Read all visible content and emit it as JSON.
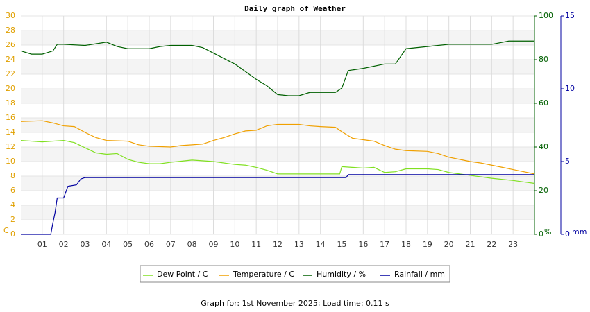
{
  "chart_data": {
    "type": "line",
    "title": "Daily graph of Weather",
    "footer": "Graph for: 1st November 2025; Load time: 0.11 s",
    "y_label": "C",
    "y2_label": "%",
    "y3_label": "mm",
    "xlim": [
      0,
      24
    ],
    "xticks": [
      {
        "value": 1,
        "label": "01"
      },
      {
        "value": 2,
        "label": "02"
      },
      {
        "value": 3,
        "label": "03"
      },
      {
        "value": 4,
        "label": "04"
      },
      {
        "value": 5,
        "label": "05"
      },
      {
        "value": 6,
        "label": "06"
      },
      {
        "value": 7,
        "label": "07"
      },
      {
        "value": 8,
        "label": "08"
      },
      {
        "value": 9,
        "label": "09"
      },
      10,
      11,
      12,
      13,
      14,
      15,
      16,
      17,
      18,
      19,
      20,
      21,
      22,
      23
    ],
    "ylim": [
      0,
      30
    ],
    "yticks": [
      0,
      2,
      4,
      6,
      8,
      10,
      12,
      14,
      16,
      18,
      20,
      22,
      24,
      26,
      28,
      30
    ],
    "y2lim": [
      0,
      100
    ],
    "y2ticks": [
      0,
      20,
      40,
      60,
      80,
      100
    ],
    "y3lim": [
      0,
      15
    ],
    "y3ticks": [
      0,
      5,
      10,
      15
    ],
    "grid": true,
    "series": [
      {
        "name": "Dew Point / C",
        "color": "#80e020",
        "x": [
          0,
          1,
          2,
          2.5,
          3,
          3.5,
          4,
          4.5,
          5,
          5.5,
          6,
          6.5,
          7,
          8,
          9,
          10,
          10.5,
          11,
          11.5,
          12,
          13,
          14,
          14.9,
          15,
          16,
          16.5,
          17,
          17.5,
          18,
          19,
          19.5,
          20,
          20.5,
          21,
          22,
          23,
          24
        ],
        "values": [
          12.9,
          12.7,
          12.9,
          12.6,
          11.9,
          11.2,
          11.0,
          11.1,
          10.3,
          9.9,
          9.7,
          9.7,
          9.9,
          10.2,
          10.0,
          9.6,
          9.5,
          9.2,
          8.8,
          8.3,
          8.3,
          8.3,
          8.3,
          9.3,
          9.1,
          9.2,
          8.5,
          8.6,
          9.0,
          9.0,
          8.9,
          8.5,
          8.3,
          8.1,
          7.7,
          7.4,
          7.0
        ]
      },
      {
        "name": "Temperature / C",
        "color": "#f0a000",
        "x": [
          0,
          1,
          1.5,
          2,
          2.5,
          3,
          3.5,
          4,
          5,
          5.5,
          6,
          7,
          7.5,
          8,
          8.5,
          9,
          9.5,
          10,
          10.5,
          11,
          11.5,
          12,
          13,
          13.5,
          14,
          14.7,
          15,
          15.5,
          16,
          16.5,
          17,
          17.5,
          18,
          19,
          19.5,
          20,
          20.5,
          21,
          21.5,
          22,
          22.5,
          23,
          23.5,
          24
        ],
        "values": [
          15.5,
          15.6,
          15.3,
          14.9,
          14.8,
          14.0,
          13.3,
          12.9,
          12.8,
          12.3,
          12.1,
          12.0,
          12.2,
          12.3,
          12.4,
          12.9,
          13.3,
          13.8,
          14.2,
          14.3,
          14.9,
          15.1,
          15.1,
          14.9,
          14.8,
          14.7,
          14.1,
          13.2,
          13.0,
          12.8,
          12.2,
          11.7,
          11.5,
          11.4,
          11.1,
          10.6,
          10.3,
          10.0,
          9.8,
          9.5,
          9.2,
          8.9,
          8.6,
          8.3
        ]
      },
      {
        "name": "Humidity / %",
        "color": "#006000",
        "axis": "y2",
        "x": [
          0,
          0.5,
          1,
          1.5,
          1.7,
          2,
          3,
          4,
          4.5,
          5,
          6,
          6.5,
          7,
          8,
          8.5,
          9,
          10,
          11,
          11.5,
          12,
          12.5,
          13,
          13.5,
          14,
          14.7,
          15,
          15.3,
          16,
          17,
          17.5,
          18,
          19,
          20,
          21,
          22,
          22.8,
          24
        ],
        "values": [
          84,
          82.5,
          82.5,
          84,
          87,
          87,
          86.5,
          88,
          86,
          85,
          85,
          86,
          86.5,
          86.5,
          85.5,
          83,
          78,
          71,
          68,
          64,
          63.5,
          63.5,
          65,
          65,
          65,
          67,
          75,
          76,
          78,
          78,
          85,
          86,
          87,
          87,
          87,
          88.5,
          88.5
        ]
      },
      {
        "name": "Rainfall / mm",
        "color": "#0000a0",
        "axis": "y3",
        "x": [
          0,
          1.4,
          1.5,
          1.6,
          1.7,
          2,
          2.2,
          2.6,
          2.8,
          3,
          15.2,
          15.3,
          24
        ],
        "values": [
          0,
          0,
          0.8,
          1.5,
          2.5,
          2.5,
          3.3,
          3.4,
          3.8,
          3.9,
          3.9,
          4.1,
          4.1
        ]
      }
    ]
  }
}
